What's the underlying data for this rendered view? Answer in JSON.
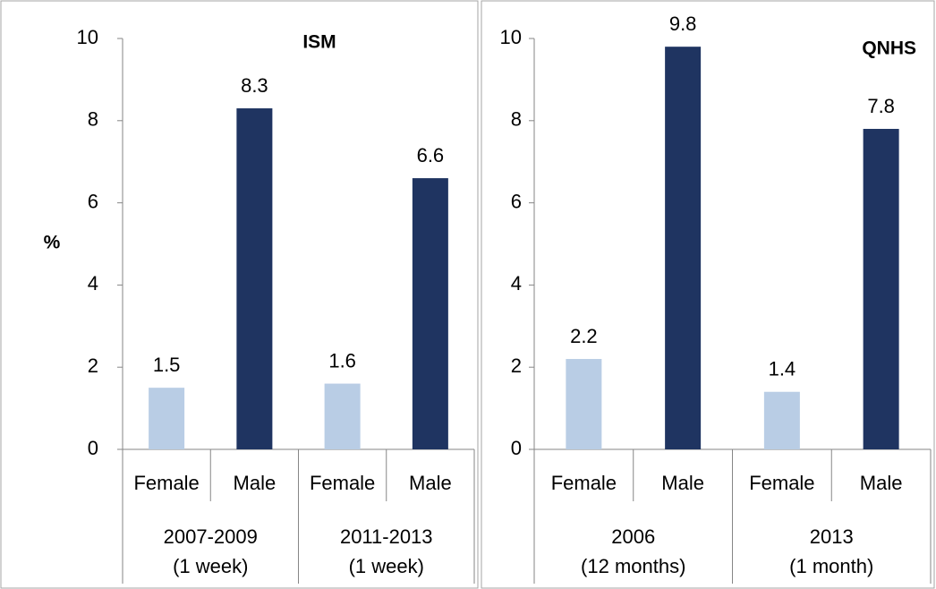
{
  "chart_data": [
    {
      "type": "bar",
      "title": "ISM",
      "y_label": "%",
      "categories": [
        "Female",
        "Male",
        "Female",
        "Male"
      ],
      "group_labels": [
        [
          "2007-2009",
          "(1 week)"
        ],
        [
          "2011-2013",
          "(1 week)"
        ]
      ],
      "values": [
        1.5,
        8.3,
        1.6,
        6.6
      ],
      "colors": [
        "#b9cde5",
        "#1f3461",
        "#b9cde5",
        "#1f3461"
      ],
      "ylim": [
        0,
        10
      ],
      "yticks": [
        0,
        2,
        4,
        6,
        8,
        10
      ]
    },
    {
      "type": "bar",
      "title": "QNHS",
      "categories": [
        "Female",
        "Male",
        "Female",
        "Male"
      ],
      "group_labels": [
        [
          "2006",
          "(12 months)"
        ],
        [
          "2013",
          "(1 month)"
        ]
      ],
      "values": [
        2.2,
        9.8,
        1.4,
        7.8
      ],
      "colors": [
        "#b9cde5",
        "#1f3461",
        "#b9cde5",
        "#1f3461"
      ],
      "ylim": [
        0,
        10
      ],
      "yticks": [
        0,
        2,
        4,
        6,
        8,
        10
      ]
    }
  ]
}
